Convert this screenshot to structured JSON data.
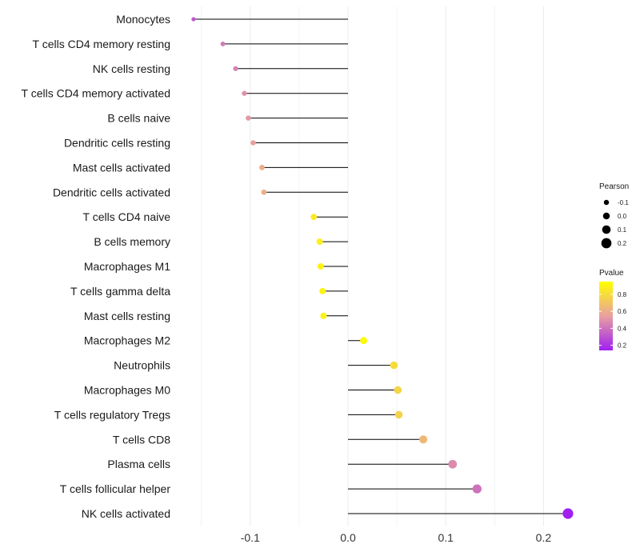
{
  "chart_data": {
    "type": "lollipop",
    "title": "",
    "xlabel": "",
    "ylabel": "",
    "xlim": [
      -0.158,
      0.228
    ],
    "x_ticks": [
      -0.1,
      0.0,
      0.1,
      0.2
    ],
    "x_tick_labels": [
      "-0.1",
      "0.0",
      "0.1",
      "0.2"
    ],
    "grid": true,
    "categories": [
      "Monocytes",
      "T cells CD4 memory resting",
      "NK cells resting",
      "T cells CD4 memory activated",
      "B cells naive",
      "Dendritic cells resting",
      "Mast cells activated",
      "Dendritic cells activated",
      "T cells CD4 naive",
      "B cells memory",
      "Macrophages M1",
      "T cells gamma delta",
      "Mast cells resting",
      "Macrophages M2",
      "Neutrophils",
      "Macrophages M0",
      "T cells regulatory  Tregs ",
      "T cells CD8",
      "Plasma cells",
      "T cells follicular helper",
      "NK cells activated"
    ],
    "pearson": [
      -0.158,
      -0.128,
      -0.115,
      -0.106,
      -0.102,
      -0.097,
      -0.088,
      -0.086,
      -0.035,
      -0.029,
      -0.028,
      -0.026,
      -0.025,
      0.016,
      0.047,
      0.051,
      0.052,
      0.077,
      0.107,
      0.132,
      0.225
    ],
    "pvalue": [
      0.32,
      0.42,
      0.45,
      0.5,
      0.52,
      0.55,
      0.6,
      0.61,
      0.86,
      0.89,
      0.89,
      0.9,
      0.9,
      0.93,
      0.8,
      0.77,
      0.76,
      0.65,
      0.48,
      0.4,
      0.14
    ],
    "legend_position": "right",
    "size_legend": {
      "title": "Pearson",
      "values": [
        -0.1,
        0.0,
        0.1,
        0.2
      ],
      "labels": [
        "-0.1",
        "0.0",
        "0.1",
        "0.2"
      ]
    },
    "color_legend": {
      "title": "Pvalue",
      "range": [
        0.14,
        0.95
      ],
      "ticks": [
        0.8,
        0.6,
        0.4,
        0.2
      ],
      "labels": [
        "0.8",
        "0.6",
        "0.4",
        "0.2"
      ],
      "low_color": "#a020f0",
      "mid_color": "#e8a0a0",
      "high_color": "#ffff00"
    },
    "stem_color": "#000000",
    "grid_color": "#ebebeb"
  }
}
